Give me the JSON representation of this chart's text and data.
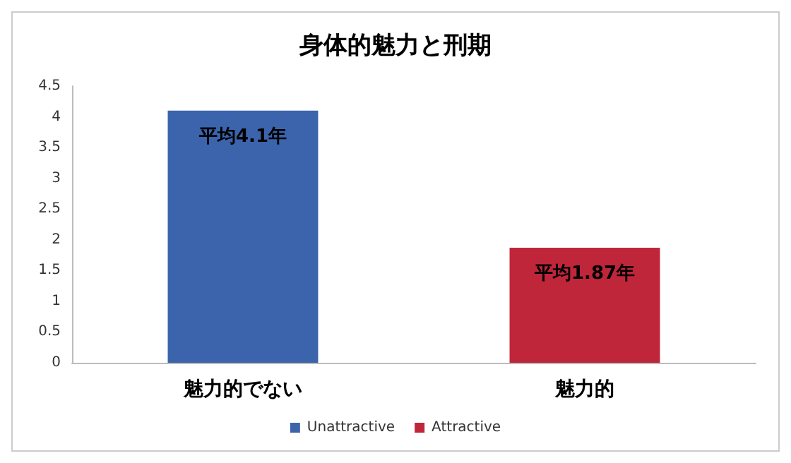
{
  "chart_data": {
    "type": "bar",
    "title": "身体的魅力と刑期",
    "categories": [
      "魅力的でない",
      "魅力的"
    ],
    "series": [
      {
        "name": "Unattractive",
        "color": "#3b64ad",
        "values": [
          4.1,
          null
        ],
        "value_labels": [
          "平均4.1年",
          null
        ]
      },
      {
        "name": "Attractive",
        "color": "#c0263a",
        "values": [
          null,
          1.87
        ],
        "value_labels": [
          null,
          "平均1.87年"
        ]
      }
    ],
    "ylim": [
      0,
      4.5
    ],
    "yticks": [
      0,
      0.5,
      1,
      1.5,
      2,
      2.5,
      3,
      3.5,
      4,
      4.5
    ],
    "grid": false,
    "legend": "bottom"
  }
}
